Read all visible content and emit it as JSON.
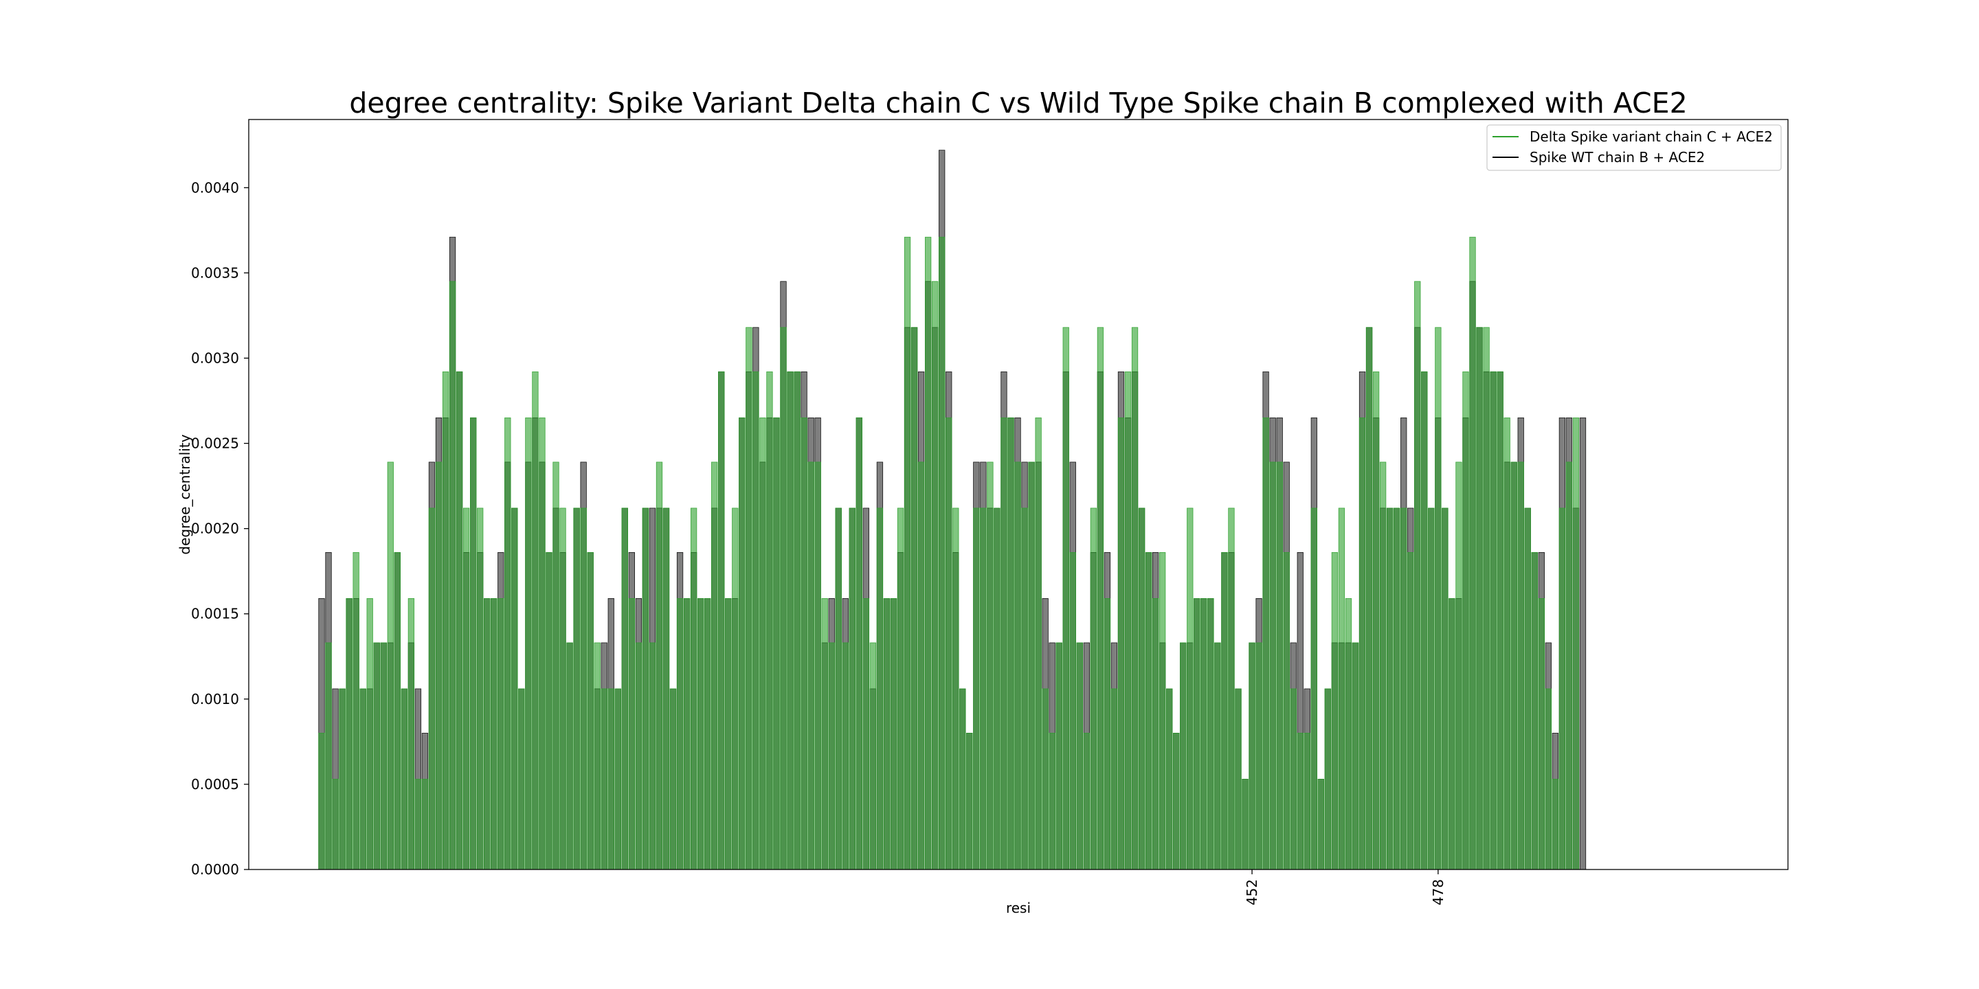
{
  "chart_data": {
    "type": "bar",
    "title": "degree centrality: Spike Variant Delta chain C vs Wild Type Spike chain B complexed with ACE2",
    "xlabel": "resi",
    "ylabel": "degree_centrality",
    "ylim": [
      0,
      0.0044
    ],
    "yticks": [
      "0.0000",
      "0.0005",
      "0.0010",
      "0.0015",
      "0.0020",
      "0.0025",
      "0.0030",
      "0.0035",
      "0.0040"
    ],
    "xticks": [
      {
        "label": "452",
        "index": 135
      },
      {
        "label": "478",
        "index": 162
      }
    ],
    "legend_position": "top-right",
    "series": [
      {
        "name": "Delta Spike variant chain C + ACE2",
        "color": "#2ca02c",
        "values": [
          0.0008,
          0.00133,
          0.00053,
          0.00106,
          0.00159,
          0.00186,
          0.00106,
          0.00159,
          0.00133,
          0.00133,
          0.00239,
          0.00186,
          0.00106,
          0.00159,
          0.00053,
          0.00053,
          0.00212,
          0.00239,
          0.00292,
          0.00345,
          0.00292,
          0.00212,
          0.00265,
          0.00212,
          0.00159,
          0.00159,
          0.00159,
          0.00265,
          0.00212,
          0.00106,
          0.00265,
          0.00292,
          0.00265,
          0.00186,
          0.00239,
          0.00212,
          0.00133,
          0.00212,
          0.00212,
          0.00186,
          0.00133,
          0.00106,
          0.00106,
          0.00106,
          0.00212,
          0.00159,
          0.00133,
          0.00212,
          0.00133,
          0.00239,
          0.00212,
          0.00106,
          0.00159,
          0.00159,
          0.00212,
          0.00159,
          0.00159,
          0.00239,
          0.00292,
          0.00159,
          0.00212,
          0.00265,
          0.00318,
          0.00292,
          0.00265,
          0.00292,
          0.00265,
          0.00318,
          0.00292,
          0.00292,
          0.00265,
          0.00239,
          0.00239,
          0.00159,
          0.00133,
          0.00212,
          0.00133,
          0.00212,
          0.00265,
          0.00159,
          0.00133,
          0.00212,
          0.00159,
          0.00159,
          0.00212,
          0.00371,
          0.00318,
          0.00239,
          0.00371,
          0.00345,
          0.00371,
          0.00265,
          0.00212,
          0.00106,
          0.0008,
          0.00212,
          0.00212,
          0.00239,
          0.00212,
          0.00265,
          0.00265,
          0.00239,
          0.00212,
          0.00239,
          0.00265,
          0.00106,
          0.0008,
          0.00133,
          0.00318,
          0.00186,
          0.00133,
          0.0008,
          0.00212,
          0.00318,
          0.00159,
          0.00106,
          0.00265,
          0.00292,
          0.00318,
          0.00212,
          0.00186,
          0.00159,
          0.00186,
          0.00106,
          0.0008,
          0.00133,
          0.00212,
          0.00159,
          0.00159,
          0.00159,
          0.00133,
          0.00186,
          0.00212,
          0.00106,
          0.00053,
          0.00133,
          0.00133,
          0.00265,
          0.00239,
          0.00239,
          0.00186,
          0.00106,
          0.0008,
          0.0008,
          0.00212,
          0.00053,
          0.00106,
          0.00186,
          0.00212,
          0.00159,
          0.00133,
          0.00265,
          0.00318,
          0.00292,
          0.00239,
          0.00212,
          0.00212,
          0.00212,
          0.00186,
          0.00345,
          0.00292,
          0.00212,
          0.00318,
          0.00212,
          0.00159,
          0.00239,
          0.00292,
          0.00371,
          0.00318,
          0.00318,
          0.00292,
          0.00292,
          0.00265,
          0.00239,
          0.00239,
          0.00212,
          0.00186,
          0.00159,
          0.00106,
          0.00053,
          0.00212,
          0.00239,
          0.00265
        ]
      },
      {
        "name": "Spike WT chain B + ACE2",
        "color": "#000000",
        "values": [
          0.00159,
          0.00186,
          0.00106,
          0.00106,
          0.00159,
          0.00159,
          0.00106,
          0.00106,
          0.00133,
          0.00133,
          0.00133,
          0.00186,
          0.00106,
          0.00133,
          0.00106,
          0.0008,
          0.00239,
          0.00265,
          0.00265,
          0.00371,
          0.00292,
          0.00186,
          0.00265,
          0.00186,
          0.00159,
          0.00159,
          0.00186,
          0.00239,
          0.00212,
          0.00106,
          0.00239,
          0.00265,
          0.00239,
          0.00186,
          0.00212,
          0.00186,
          0.00133,
          0.00212,
          0.00239,
          0.00186,
          0.00106,
          0.00133,
          0.00159,
          0.00106,
          0.00212,
          0.00186,
          0.00159,
          0.00212,
          0.00212,
          0.00212,
          0.00212,
          0.00106,
          0.00186,
          0.00159,
          0.00186,
          0.00159,
          0.00159,
          0.00212,
          0.00292,
          0.00159,
          0.00159,
          0.00265,
          0.00292,
          0.00318,
          0.00239,
          0.00265,
          0.00265,
          0.00345,
          0.00292,
          0.00292,
          0.00292,
          0.00265,
          0.00265,
          0.00133,
          0.00159,
          0.00212,
          0.00159,
          0.00212,
          0.00265,
          0.00212,
          0.00106,
          0.00239,
          0.00159,
          0.00159,
          0.00186,
          0.00318,
          0.00318,
          0.00292,
          0.00345,
          0.00318,
          0.00422,
          0.00292,
          0.00186,
          0.00106,
          0.0008,
          0.00239,
          0.00239,
          0.00212,
          0.00212,
          0.00292,
          0.00265,
          0.00265,
          0.00239,
          0.00239,
          0.00239,
          0.00159,
          0.00133,
          0.00133,
          0.00292,
          0.00239,
          0.00133,
          0.00133,
          0.00186,
          0.00292,
          0.00186,
          0.00133,
          0.00292,
          0.00265,
          0.00292,
          0.00212,
          0.00186,
          0.00186,
          0.00133,
          0.00106,
          0.0008,
          0.00133,
          0.00133,
          0.00159,
          0.00159,
          0.00159,
          0.00133,
          0.00186,
          0.00186,
          0.00106,
          0.00053,
          0.00133,
          0.00159,
          0.00292,
          0.00265,
          0.00265,
          0.00239,
          0.00133,
          0.00186,
          0.00106,
          0.00265,
          0.00053,
          0.00106,
          0.00133,
          0.00133,
          0.00133,
          0.00133,
          0.00292,
          0.00318,
          0.00265,
          0.00212,
          0.00212,
          0.00212,
          0.00265,
          0.00212,
          0.00318,
          0.00292,
          0.00212,
          0.00265,
          0.00212,
          0.00159,
          0.00159,
          0.00265,
          0.00345,
          0.00318,
          0.00292,
          0.00292,
          0.00292,
          0.00239,
          0.00239,
          0.00265,
          0.00212,
          0.00186,
          0.00186,
          0.00133,
          0.0008,
          0.00265,
          0.00265,
          0.00212,
          0.00265
        ]
      }
    ]
  }
}
